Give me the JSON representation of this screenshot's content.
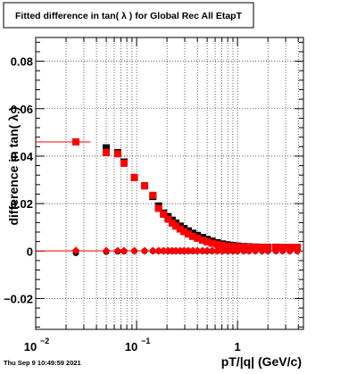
{
  "title_box": {
    "text": "Fitted difference in tan( λ ) for Global Rec All EtapT"
  },
  "footer": {
    "timestamp": "Thu Sep  9 10:49:59 2021"
  },
  "chart_data": {
    "type": "scatter",
    "title": "Fitted difference in tan( λ ) for Global Rec All EtapT",
    "xlabel": "pT/|q| (GeV/c)",
    "ylabel": "difference in tan( λ )",
    "xscale": "log",
    "xlim": [
      0.01,
      4.5
    ],
    "ylim": [
      -0.033,
      0.09
    ],
    "grid": true,
    "x_ticks": [
      {
        "value": 0.01,
        "base": "10",
        "exp": "−2"
      },
      {
        "value": 0.1,
        "base": "10",
        "exp": "−1"
      },
      {
        "value": 1,
        "base": "1",
        "exp": ""
      }
    ],
    "y_ticks": [
      {
        "value": -0.02,
        "label": "−0.02"
      },
      {
        "value": 0,
        "label": "0"
      },
      {
        "value": 0.02,
        "label": "0.02"
      },
      {
        "value": 0.04,
        "label": "0.04"
      },
      {
        "value": 0.06,
        "label": "0.06"
      },
      {
        "value": 0.08,
        "label": "0.08"
      }
    ],
    "series": [
      {
        "color": "#000000",
        "marker": "square",
        "points": [
          [
            0.025,
            0.046
          ],
          [
            0.05,
            0.0435
          ],
          [
            0.065,
            0.0415
          ],
          [
            0.075,
            0.0375
          ],
          [
            0.095,
            0.031
          ],
          [
            0.12,
            0.0275
          ],
          [
            0.145,
            0.023
          ],
          [
            0.165,
            0.019
          ],
          [
            0.185,
            0.016
          ],
          [
            0.205,
            0.0145
          ],
          [
            0.225,
            0.013
          ],
          [
            0.245,
            0.0118
          ],
          [
            0.27,
            0.0105
          ],
          [
            0.295,
            0.0095
          ],
          [
            0.325,
            0.0085
          ],
          [
            0.36,
            0.0075
          ],
          [
            0.4,
            0.0066
          ],
          [
            0.45,
            0.0057
          ],
          [
            0.5,
            0.0049
          ],
          [
            0.56,
            0.0042
          ],
          [
            0.63,
            0.0035
          ],
          [
            0.71,
            0.003
          ],
          [
            0.8,
            0.0026
          ],
          [
            0.9,
            0.0023
          ],
          [
            1.0,
            0.0021
          ],
          [
            1.15,
            0.0019
          ],
          [
            1.3,
            0.0018
          ],
          [
            1.5,
            0.0017
          ],
          [
            1.75,
            0.0016
          ],
          [
            2.0,
            0.0016
          ],
          [
            2.4,
            0.0016
          ],
          [
            2.8,
            0.0015
          ],
          [
            3.3,
            0.0015
          ],
          [
            3.9,
            0.0015
          ]
        ]
      },
      {
        "color": "#ff0000",
        "marker": "square",
        "points": [
          [
            0.025,
            0.046
          ],
          [
            0.05,
            0.0415
          ],
          [
            0.065,
            0.041
          ],
          [
            0.075,
            0.037
          ],
          [
            0.095,
            0.031
          ],
          [
            0.12,
            0.0275
          ],
          [
            0.145,
            0.0235
          ],
          [
            0.165,
            0.018
          ],
          [
            0.185,
            0.0155
          ],
          [
            0.205,
            0.0135
          ],
          [
            0.225,
            0.0118
          ],
          [
            0.245,
            0.0105
          ],
          [
            0.27,
            0.0093
          ],
          [
            0.295,
            0.0082
          ],
          [
            0.325,
            0.0072
          ],
          [
            0.36,
            0.0062
          ],
          [
            0.4,
            0.0054
          ],
          [
            0.45,
            0.0046
          ],
          [
            0.5,
            0.0039
          ],
          [
            0.56,
            0.0033
          ],
          [
            0.63,
            0.0028
          ],
          [
            0.71,
            0.0024
          ],
          [
            0.8,
            0.0021
          ],
          [
            0.9,
            0.0019
          ],
          [
            1.0,
            0.0018
          ],
          [
            1.15,
            0.0017
          ],
          [
            1.3,
            0.0016
          ],
          [
            1.5,
            0.0016
          ],
          [
            1.75,
            0.0015
          ],
          [
            2.0,
            0.0015
          ],
          [
            2.4,
            0.0015
          ],
          [
            2.8,
            0.0015
          ],
          [
            3.3,
            0.0015
          ],
          [
            3.9,
            0.0015
          ]
        ]
      },
      {
        "color": "#000000",
        "marker": "circle",
        "points": [
          [
            0.025,
            -0.0008
          ],
          [
            0.05,
            -0.0003
          ],
          [
            0.065,
            -0.0002
          ],
          [
            0.075,
            -0.0001
          ],
          [
            0.095,
            0.0
          ],
          [
            0.12,
            0.0
          ],
          [
            0.145,
            0.0
          ],
          [
            0.165,
            0.0
          ],
          [
            0.185,
            0.0
          ],
          [
            0.205,
            0.0
          ],
          [
            0.225,
            0.0
          ],
          [
            0.245,
            0.0
          ],
          [
            0.27,
            0.0
          ],
          [
            0.295,
            0.0
          ],
          [
            0.325,
            0.0
          ],
          [
            0.36,
            0.0
          ],
          [
            0.4,
            0.0
          ],
          [
            0.45,
            0.0
          ],
          [
            0.5,
            0.0
          ],
          [
            0.56,
            0.0
          ],
          [
            0.63,
            0.0
          ],
          [
            0.71,
            0.0
          ],
          [
            0.8,
            0.0
          ],
          [
            0.9,
            0.0
          ],
          [
            1.0,
            0.0
          ],
          [
            1.15,
            0.0
          ],
          [
            1.3,
            0.0
          ],
          [
            1.5,
            0.0
          ],
          [
            1.75,
            0.0
          ],
          [
            2.0,
            0.0
          ],
          [
            2.4,
            0.0
          ],
          [
            2.8,
            0.0
          ],
          [
            3.3,
            0.0
          ],
          [
            3.9,
            0.0
          ]
        ]
      },
      {
        "color": "#ff0000",
        "marker": "diamond",
        "points": [
          [
            0.025,
            0.0002
          ],
          [
            0.05,
            0.0001
          ],
          [
            0.065,
            0.0001
          ],
          [
            0.075,
            0.0001
          ],
          [
            0.095,
            0.0001
          ],
          [
            0.12,
            0.0001
          ],
          [
            0.145,
            0.0001
          ],
          [
            0.165,
            0.0001
          ],
          [
            0.185,
            0.0001
          ],
          [
            0.205,
            0.0001
          ],
          [
            0.225,
            0.0001
          ],
          [
            0.245,
            0.0001
          ],
          [
            0.27,
            0.0001
          ],
          [
            0.295,
            0.0001
          ],
          [
            0.325,
            0.0001
          ],
          [
            0.36,
            0.0001
          ],
          [
            0.4,
            0.0001
          ],
          [
            0.45,
            0.0001
          ],
          [
            0.5,
            0.0001
          ],
          [
            0.56,
            0.0001
          ],
          [
            0.63,
            0.0001
          ],
          [
            0.71,
            0.0001
          ],
          [
            0.8,
            0.0001
          ],
          [
            0.9,
            0.0001
          ],
          [
            1.0,
            0.0001
          ],
          [
            1.15,
            0.0001
          ],
          [
            1.3,
            0.0001
          ],
          [
            1.5,
            0.0001
          ],
          [
            1.75,
            0.0001
          ],
          [
            2.0,
            0.0001
          ],
          [
            2.4,
            0.0001
          ],
          [
            2.8,
            0.0001
          ],
          [
            3.3,
            0.0001
          ],
          [
            3.9,
            0.0001
          ]
        ]
      }
    ]
  }
}
